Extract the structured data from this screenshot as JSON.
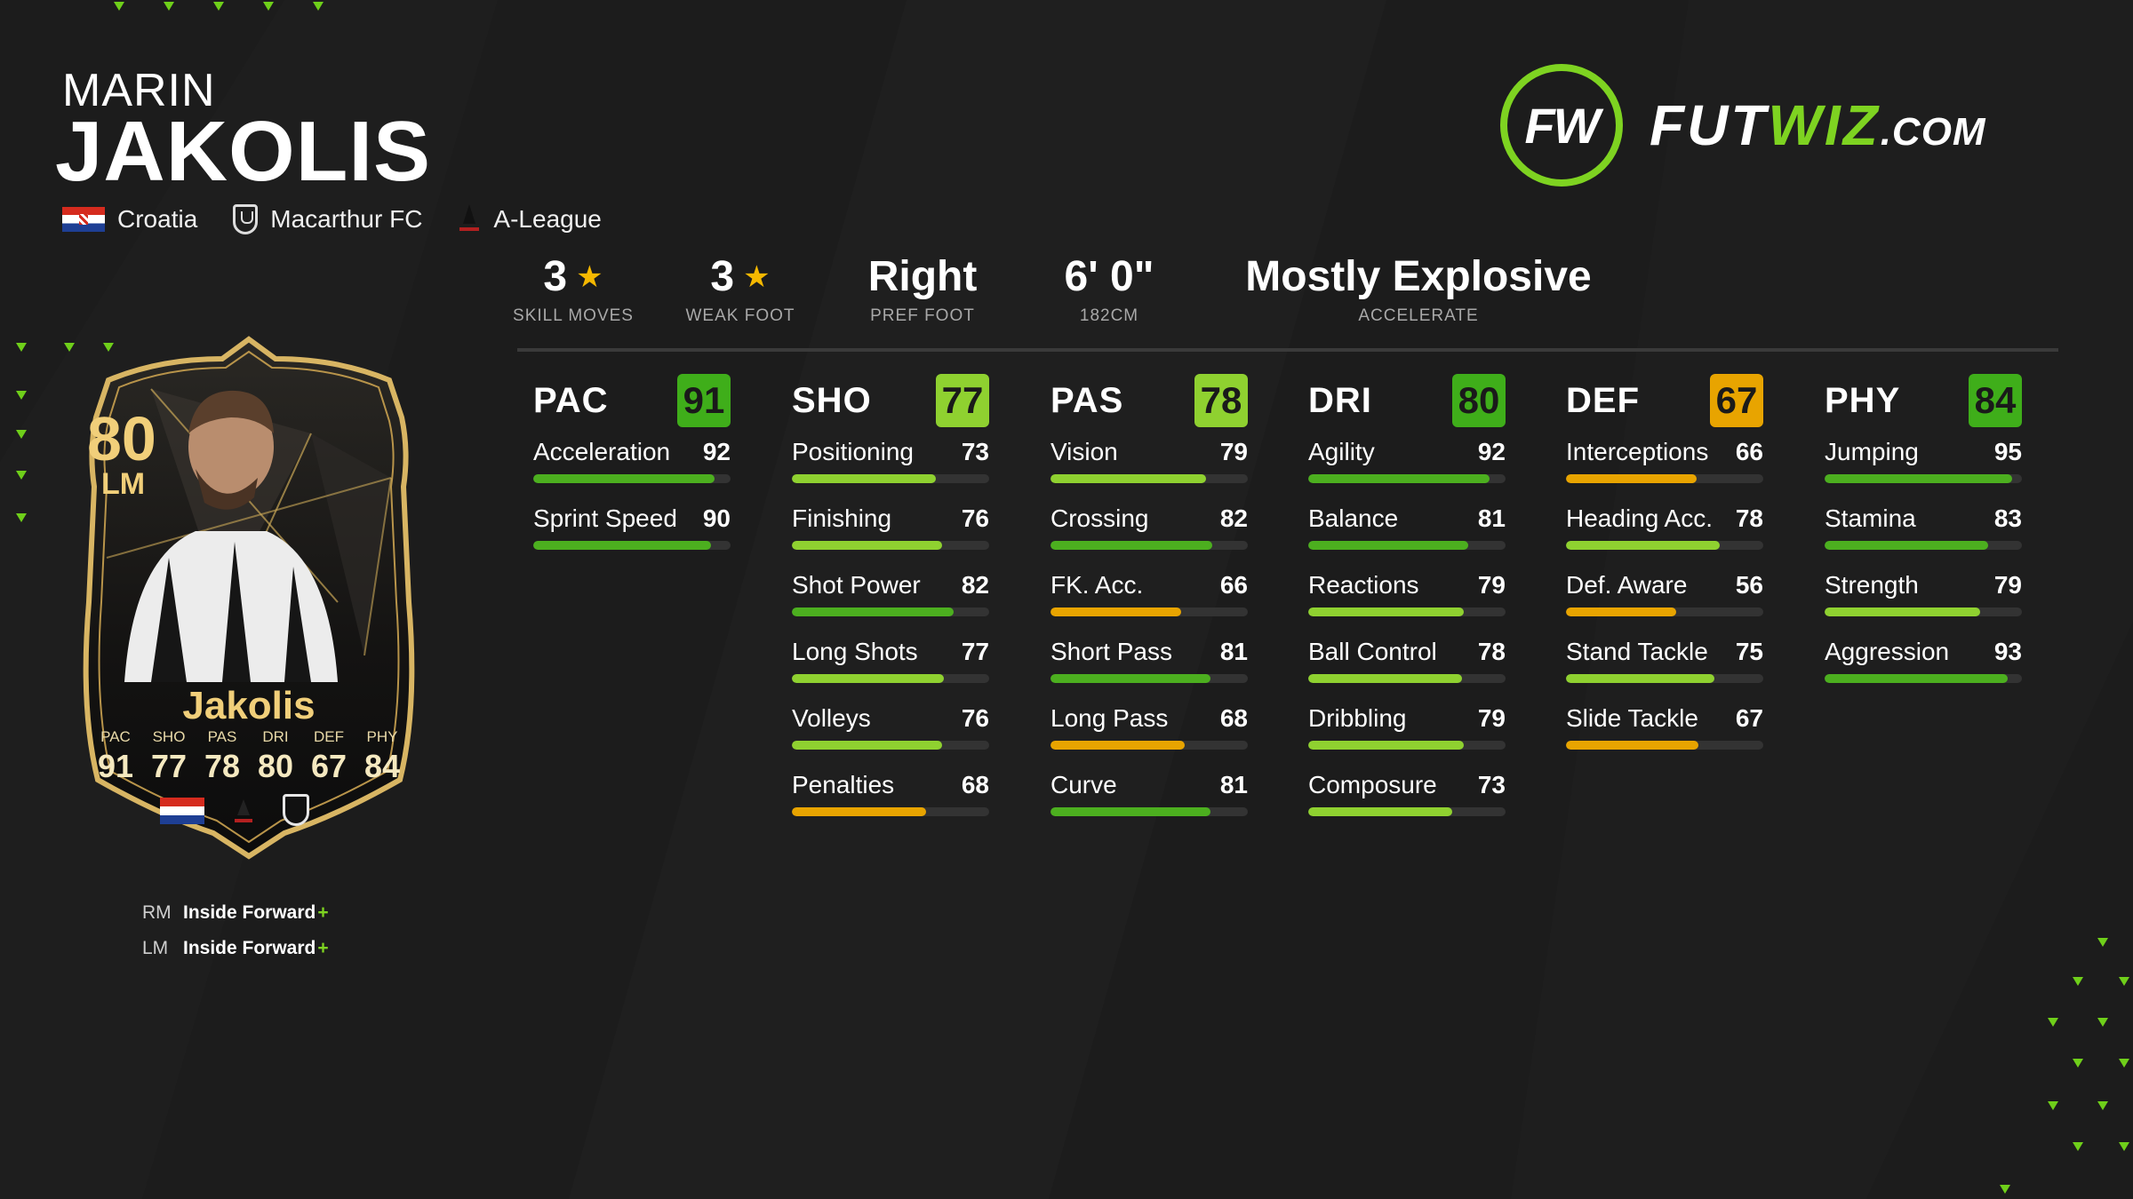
{
  "player": {
    "first_name": "MARIN",
    "last_name": "JAKOLIS",
    "nation": "Croatia",
    "club": "Macarthur FC",
    "league": "A-League"
  },
  "logo": {
    "mark": "FW",
    "text_part1": "FUT",
    "text_part2": "WIZ",
    "text_part3": ".COM"
  },
  "info": [
    {
      "value": "3",
      "star": true,
      "label": "SKILL MOVES"
    },
    {
      "value": "3",
      "star": true,
      "label": "WEAK FOOT"
    },
    {
      "value": "Right",
      "star": false,
      "label": "PREF FOOT"
    },
    {
      "value": "6' 0\"",
      "star": false,
      "label": "182CM"
    },
    {
      "value": "Mostly Explosive",
      "star": false,
      "label": "ACCELERATE"
    }
  ],
  "categories": [
    {
      "name": "PAC",
      "value": 91,
      "stats": [
        {
          "name": "Acceleration",
          "value": 92
        },
        {
          "name": "Sprint Speed",
          "value": 90
        }
      ]
    },
    {
      "name": "SHO",
      "value": 77,
      "stats": [
        {
          "name": "Positioning",
          "value": 73
        },
        {
          "name": "Finishing",
          "value": 76
        },
        {
          "name": "Shot Power",
          "value": 82
        },
        {
          "name": "Long Shots",
          "value": 77
        },
        {
          "name": "Volleys",
          "value": 76
        },
        {
          "name": "Penalties",
          "value": 68
        }
      ]
    },
    {
      "name": "PAS",
      "value": 78,
      "stats": [
        {
          "name": "Vision",
          "value": 79
        },
        {
          "name": "Crossing",
          "value": 82
        },
        {
          "name": "FK. Acc.",
          "value": 66
        },
        {
          "name": "Short Pass",
          "value": 81
        },
        {
          "name": "Long Pass",
          "value": 68
        },
        {
          "name": "Curve",
          "value": 81
        }
      ]
    },
    {
      "name": "DRI",
      "value": 80,
      "stats": [
        {
          "name": "Agility",
          "value": 92
        },
        {
          "name": "Balance",
          "value": 81
        },
        {
          "name": "Reactions",
          "value": 79
        },
        {
          "name": "Ball Control",
          "value": 78
        },
        {
          "name": "Dribbling",
          "value": 79
        },
        {
          "name": "Composure",
          "value": 73
        }
      ]
    },
    {
      "name": "DEF",
      "value": 67,
      "stats": [
        {
          "name": "Interceptions",
          "value": 66
        },
        {
          "name": "Heading Acc.",
          "value": 78
        },
        {
          "name": "Def. Aware",
          "value": 56
        },
        {
          "name": "Stand Tackle",
          "value": 75
        },
        {
          "name": "Slide Tackle",
          "value": 67
        }
      ]
    },
    {
      "name": "PHY",
      "value": 84,
      "stats": [
        {
          "name": "Jumping",
          "value": 95
        },
        {
          "name": "Stamina",
          "value": 83
        },
        {
          "name": "Strength",
          "value": 79
        },
        {
          "name": "Aggression",
          "value": 93
        }
      ]
    }
  ],
  "card": {
    "rating": "80",
    "position": "LM",
    "name": "Jakolis",
    "stats": [
      {
        "label": "PAC",
        "value": "91"
      },
      {
        "label": "SHO",
        "value": "77"
      },
      {
        "label": "PAS",
        "value": "78"
      },
      {
        "label": "DRI",
        "value": "80"
      },
      {
        "label": "DEF",
        "value": "67"
      },
      {
        "label": "PHY",
        "value": "84"
      }
    ]
  },
  "roles": [
    {
      "position": "RM",
      "role": "Inside Forward",
      "plus": "+"
    },
    {
      "position": "LM",
      "role": "Inside Forward",
      "plus": "+"
    }
  ],
  "colors": {
    "high": "#4caf1f",
    "mid": "#8fd130",
    "low": "#e8a400",
    "badge_high": "#3fae1a",
    "badge_mid": "#8fd130",
    "badge_low": "#e8a400",
    "accent": "#7ed321"
  }
}
